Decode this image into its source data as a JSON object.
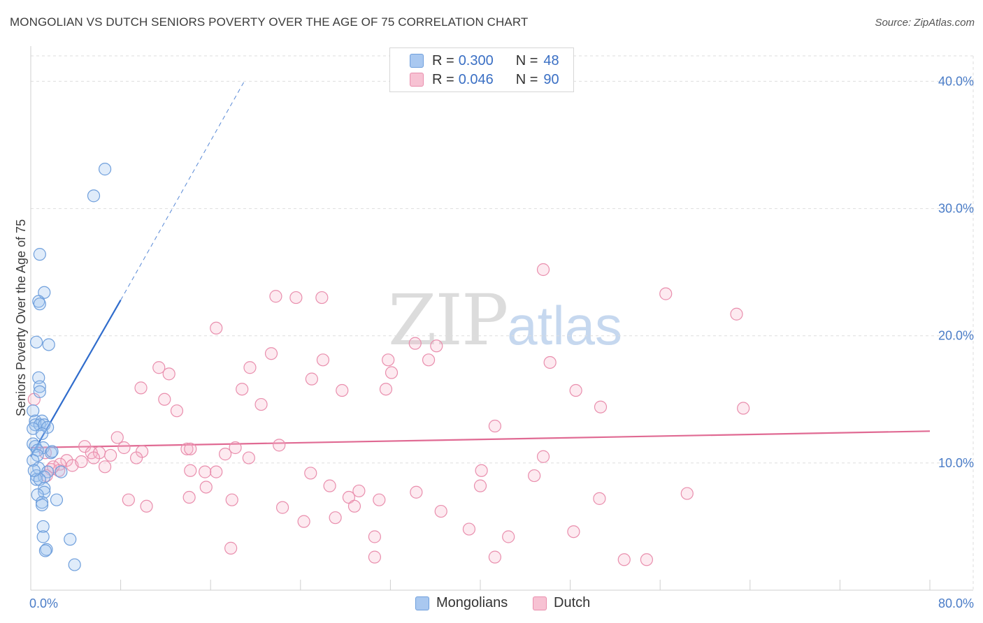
{
  "header": {
    "title": "MONGOLIAN VS DUTCH SENIORS POVERTY OVER THE AGE OF 75 CORRELATION CHART",
    "source": "Source: ZipAtlas.com"
  },
  "watermark": {
    "zip": "ZIP",
    "atlas": "atlas"
  },
  "legend": {
    "rows": [
      {
        "r_label": "R =",
        "r_value": "0.300",
        "n_label": "N =",
        "n_value": "48",
        "color": "#a9c8f0",
        "border": "#6f9fdc"
      },
      {
        "r_label": "R =",
        "r_value": "0.046",
        "n_label": "N =",
        "n_value": "90",
        "color": "#f7c2d3",
        "border": "#e98ead"
      }
    ]
  },
  "bottom_legend": {
    "mongolians": "Mongolians",
    "dutch": "Dutch"
  },
  "chart_data": {
    "type": "scatter",
    "title": "MONGOLIAN VS DUTCH SENIORS POVERTY OVER THE AGE OF 75 CORRELATION CHART",
    "xlabel": "",
    "ylabel": "Seniors Poverty Over the Age of 75",
    "xlim": [
      0,
      80
    ],
    "ylim": [
      0,
      42
    ],
    "x_tick_labels": [
      "0.0%",
      "80.0%"
    ],
    "y_ticks": [
      10,
      20,
      30,
      40
    ],
    "y_tick_labels": [
      "10.0%",
      "20.0%",
      "30.0%",
      "40.0%"
    ],
    "grid": true,
    "colors": {
      "mongolians": "#6f9fdc",
      "dutch": "#e98ead",
      "mongolians_line": "#2f6ccc",
      "dutch_line": "#e06a93"
    },
    "series": [
      {
        "name": "Mongolians",
        "R": 0.3,
        "N": 48,
        "trend": {
          "x0": 0,
          "y0": 10.5,
          "x1": 8,
          "y1": 22.8,
          "x_dash_end": 19,
          "y_dash_end": 40
        },
        "points": [
          [
            6.6,
            33.1
          ],
          [
            5.6,
            31.0
          ],
          [
            0.8,
            26.4
          ],
          [
            1.2,
            23.4
          ],
          [
            0.7,
            22.7
          ],
          [
            0.8,
            22.5
          ],
          [
            0.5,
            19.5
          ],
          [
            1.6,
            19.3
          ],
          [
            0.7,
            16.7
          ],
          [
            0.8,
            16.0
          ],
          [
            0.8,
            15.6
          ],
          [
            0.2,
            14.1
          ],
          [
            0.4,
            13.3
          ],
          [
            1.0,
            13.3
          ],
          [
            0.4,
            13.0
          ],
          [
            0.8,
            13.0
          ],
          [
            1.2,
            13.0
          ],
          [
            1.5,
            12.8
          ],
          [
            0.2,
            12.7
          ],
          [
            1.0,
            12.3
          ],
          [
            0.2,
            11.5
          ],
          [
            0.4,
            11.3
          ],
          [
            1.1,
            11.2
          ],
          [
            0.6,
            11.0
          ],
          [
            1.8,
            10.8
          ],
          [
            0.6,
            10.6
          ],
          [
            0.2,
            10.2
          ],
          [
            0.7,
            9.6
          ],
          [
            1.5,
            9.3
          ],
          [
            2.7,
            9.3
          ],
          [
            0.5,
            9.0
          ],
          [
            1.2,
            8.9
          ],
          [
            0.5,
            8.7
          ],
          [
            0.8,
            8.7
          ],
          [
            1.2,
            8.0
          ],
          [
            1.2,
            7.7
          ],
          [
            0.6,
            7.5
          ],
          [
            2.3,
            7.1
          ],
          [
            1.0,
            6.9
          ],
          [
            1.0,
            6.7
          ],
          [
            1.1,
            5.0
          ],
          [
            1.1,
            4.2
          ],
          [
            3.5,
            4.0
          ],
          [
            1.4,
            3.2
          ],
          [
            1.3,
            3.1
          ],
          [
            3.9,
            2.0
          ],
          [
            0.3,
            9.4
          ],
          [
            1.9,
            10.9
          ]
        ]
      },
      {
        "name": "Dutch",
        "R": 0.046,
        "N": 90,
        "trend": {
          "x0": 0,
          "y0": 11.2,
          "x1": 80,
          "y1": 12.5
        },
        "points": [
          [
            45.6,
            25.2
          ],
          [
            21.8,
            23.1
          ],
          [
            23.6,
            23.0
          ],
          [
            25.9,
            23.0
          ],
          [
            56.5,
            23.3
          ],
          [
            62.8,
            21.7
          ],
          [
            16.5,
            20.6
          ],
          [
            34.2,
            19.4
          ],
          [
            36.1,
            19.2
          ],
          [
            21.4,
            18.6
          ],
          [
            26.0,
            18.1
          ],
          [
            31.8,
            18.1
          ],
          [
            35.4,
            18.1
          ],
          [
            46.2,
            17.9
          ],
          [
            11.4,
            17.5
          ],
          [
            19.5,
            17.5
          ],
          [
            12.3,
            17.0
          ],
          [
            32.1,
            17.1
          ],
          [
            25.0,
            16.6
          ],
          [
            9.8,
            15.9
          ],
          [
            18.8,
            15.8
          ],
          [
            27.7,
            15.7
          ],
          [
            31.6,
            15.8
          ],
          [
            48.5,
            15.7
          ],
          [
            11.9,
            15.0
          ],
          [
            20.5,
            14.6
          ],
          [
            50.7,
            14.4
          ],
          [
            63.4,
            14.3
          ],
          [
            13.0,
            14.1
          ],
          [
            41.3,
            12.9
          ],
          [
            7.7,
            12.0
          ],
          [
            4.8,
            11.3
          ],
          [
            8.3,
            11.2
          ],
          [
            13.9,
            11.1
          ],
          [
            14.2,
            11.1
          ],
          [
            18.2,
            11.2
          ],
          [
            22.1,
            11.4
          ],
          [
            5.4,
            10.8
          ],
          [
            6.1,
            10.8
          ],
          [
            9.9,
            10.9
          ],
          [
            1.3,
            10.8
          ],
          [
            3.2,
            10.2
          ],
          [
            5.6,
            10.4
          ],
          [
            7.1,
            10.6
          ],
          [
            9.4,
            10.4
          ],
          [
            17.3,
            10.7
          ],
          [
            19.4,
            10.4
          ],
          [
            45.6,
            10.5
          ],
          [
            2.6,
            9.9
          ],
          [
            3.7,
            9.8
          ],
          [
            4.5,
            10.1
          ],
          [
            6.6,
            9.7
          ],
          [
            1.8,
            9.5
          ],
          [
            2.5,
            9.4
          ],
          [
            14.2,
            9.4
          ],
          [
            15.5,
            9.3
          ],
          [
            16.5,
            9.3
          ],
          [
            24.9,
            9.2
          ],
          [
            40.1,
            9.4
          ],
          [
            44.8,
            9.0
          ],
          [
            15.6,
            8.1
          ],
          [
            26.6,
            8.2
          ],
          [
            28.3,
            7.3
          ],
          [
            29.2,
            7.8
          ],
          [
            34.3,
            7.7
          ],
          [
            40.0,
            8.2
          ],
          [
            58.4,
            7.6
          ],
          [
            8.7,
            7.1
          ],
          [
            14.1,
            7.3
          ],
          [
            17.9,
            7.1
          ],
          [
            31.0,
            7.1
          ],
          [
            50.6,
            7.2
          ],
          [
            10.3,
            6.6
          ],
          [
            22.4,
            6.5
          ],
          [
            28.8,
            6.6
          ],
          [
            36.5,
            6.2
          ],
          [
            24.3,
            5.4
          ],
          [
            27.1,
            5.7
          ],
          [
            39.0,
            4.8
          ],
          [
            42.5,
            4.2
          ],
          [
            48.3,
            4.6
          ],
          [
            30.6,
            4.2
          ],
          [
            17.8,
            3.3
          ],
          [
            30.6,
            2.6
          ],
          [
            41.3,
            2.6
          ],
          [
            52.8,
            2.4
          ],
          [
            54.8,
            2.4
          ],
          [
            0.3,
            15.0
          ],
          [
            1.4,
            9.0
          ],
          [
            2.0,
            9.7
          ]
        ]
      }
    ]
  }
}
